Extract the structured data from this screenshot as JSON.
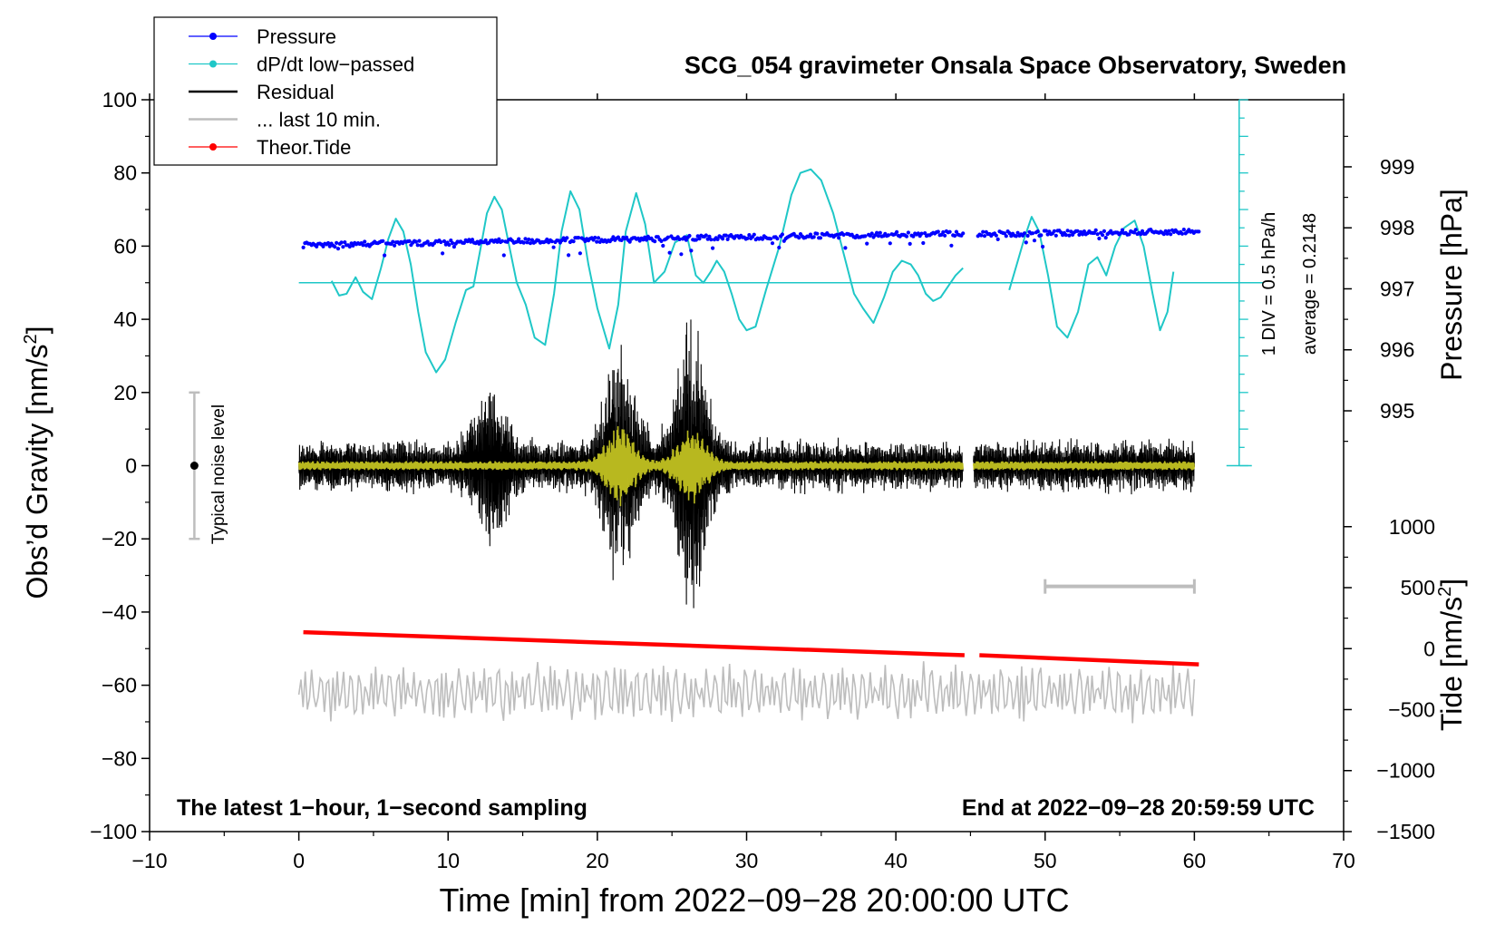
{
  "chart_data": {
    "type": "line",
    "title": "SCG_054 gravimeter Onsala Space Observatory, Sweden",
    "xlabel": "Time [min] from 2022−09−28 20:00:00 UTC",
    "ylabel_left": "Obs’d Gravity [nm/s",
    "ylabel_left_sup": "2",
    "ylabel_left_close": "]",
    "ylabel_pressure": "Pressure [hPa]",
    "ylabel_tide": "Tide [nm/s",
    "ylabel_tide_sup": "2",
    "ylabel_tide_close": "]",
    "xlim": [
      -10,
      70
    ],
    "ylim": [
      -100,
      100
    ],
    "x_ticks": [
      "−10",
      "0",
      "10",
      "20",
      "30",
      "40",
      "50",
      "60",
      "70"
    ],
    "y_ticks": [
      "−100",
      "−80",
      "−60",
      "−40",
      "−20",
      "0",
      "20",
      "40",
      "60",
      "80",
      "100"
    ],
    "pressure_axis": {
      "ticks": [
        {
          "value": 999,
          "label": "999"
        },
        {
          "value": 998,
          "label": "998"
        },
        {
          "value": 997,
          "label": "997"
        },
        {
          "value": 996,
          "label": "996"
        },
        {
          "value": 995,
          "label": "995"
        }
      ],
      "mapping": {
        "value_at_60": 997.7,
        "per_hpa": 16.67
      }
    },
    "tide_axis": {
      "ticks": [
        {
          "value": 1000,
          "label": "1000"
        },
        {
          "value": 500,
          "label": "500"
        },
        {
          "value": 0,
          "label": "0"
        },
        {
          "value": -500,
          "label": "−500"
        },
        {
          "value": -1000,
          "label": "−1000"
        },
        {
          "value": -1500,
          "label": "−1500"
        }
      ],
      "mapping": {
        "gravity_at_zero": -50,
        "per_1000": 33.333
      }
    },
    "legend": {
      "position": "top-left",
      "entries": [
        {
          "label": "Pressure",
          "color": "#0000ff",
          "marker": true
        },
        {
          "label": "dP/dt low−passed",
          "color": "#1fc7c7",
          "marker": true
        },
        {
          "label": "Residual",
          "color": "#000000",
          "marker": false
        },
        {
          "label": "... last 10 min.",
          "color": "#bdbdbd",
          "marker": false
        },
        {
          "label": "Theor.Tide",
          "color": "#ff0000",
          "marker": true
        }
      ]
    },
    "annotations": {
      "noise": "Typical noise level",
      "noise_bar": {
        "x": -7,
        "y_low": -20,
        "y_high": 20
      },
      "div": "1 DIV = 0.5 hPa/h",
      "average": "average = 0.2148",
      "bottom_left": "The latest 1−hour, 1−second sampling",
      "bottom_right": "End at 2022−09−28 20:59:59 UTC",
      "last10_bar": {
        "x_start": 50,
        "x_end": 60,
        "y": -33
      }
    },
    "dpdt_axis": {
      "x": 63,
      "y_bottom": 0,
      "y_top": 100,
      "baseline": 50,
      "tick_step": 5
    },
    "series": [
      {
        "name": "Pressure",
        "color": "#0000ff",
        "segments": [
          {
            "x_start": 0.3,
            "x_end": 44.5,
            "y_start": 60.3,
            "y_end": 63.5
          },
          {
            "x_start": 45.5,
            "x_end": 60.3,
            "y_start": 63.3,
            "y_end": 64.0
          }
        ]
      },
      {
        "name": "dP/dt low-passed",
        "color": "#1fc7c7",
        "points": [
          [
            2.2,
            50.5
          ],
          [
            2.7,
            46.5
          ],
          [
            3.2,
            47
          ],
          [
            3.8,
            51.5
          ],
          [
            4.3,
            47.5
          ],
          [
            4.9,
            45.5
          ],
          [
            5.5,
            54
          ],
          [
            6.0,
            62
          ],
          [
            6.5,
            67.5
          ],
          [
            7.0,
            64
          ],
          [
            7.5,
            55
          ],
          [
            8.0,
            42
          ],
          [
            8.5,
            31
          ],
          [
            9.2,
            25.5
          ],
          [
            9.8,
            29
          ],
          [
            10.5,
            39
          ],
          [
            11.2,
            48
          ],
          [
            11.7,
            49
          ],
          [
            12.2,
            60
          ],
          [
            12.6,
            69
          ],
          [
            13.1,
            73.5
          ],
          [
            13.6,
            70
          ],
          [
            14.1,
            60
          ],
          [
            14.6,
            50
          ],
          [
            15.2,
            44
          ],
          [
            15.8,
            35
          ],
          [
            16.5,
            33
          ],
          [
            17.1,
            47
          ],
          [
            17.6,
            64
          ],
          [
            18.2,
            75
          ],
          [
            18.8,
            70
          ],
          [
            19.4,
            55
          ],
          [
            20.0,
            43
          ],
          [
            20.8,
            32
          ],
          [
            21.4,
            44
          ],
          [
            21.9,
            64
          ],
          [
            22.6,
            74.5
          ],
          [
            23.2,
            66
          ],
          [
            23.8,
            50
          ],
          [
            24.5,
            53
          ],
          [
            25.2,
            61
          ],
          [
            26.0,
            63
          ],
          [
            26.6,
            52
          ],
          [
            27.1,
            50
          ],
          [
            27.6,
            53
          ],
          [
            28.0,
            56
          ],
          [
            28.5,
            53
          ],
          [
            29.0,
            47
          ],
          [
            29.5,
            40
          ],
          [
            30.0,
            37
          ],
          [
            30.6,
            38
          ],
          [
            31.3,
            48
          ],
          [
            32.2,
            60
          ],
          [
            33.0,
            74
          ],
          [
            33.6,
            80
          ],
          [
            34.3,
            81
          ],
          [
            35.0,
            78
          ],
          [
            35.8,
            69
          ],
          [
            36.5,
            58
          ],
          [
            37.2,
            47
          ],
          [
            37.8,
            43
          ],
          [
            38.5,
            39
          ],
          [
            39.2,
            46
          ],
          [
            39.8,
            53
          ],
          [
            40.4,
            56
          ],
          [
            41.0,
            55
          ],
          [
            41.5,
            52
          ],
          [
            42.0,
            47
          ],
          [
            42.5,
            45
          ],
          [
            43.0,
            46
          ],
          [
            43.5,
            49
          ],
          [
            44.0,
            52
          ],
          [
            44.5,
            54
          ],
          null,
          [
            47.6,
            48
          ],
          [
            48.1,
            55
          ],
          [
            48.6,
            62
          ],
          [
            49.1,
            68
          ],
          [
            49.6,
            64
          ],
          [
            50.2,
            52
          ],
          [
            50.8,
            38
          ],
          [
            51.5,
            35
          ],
          [
            52.2,
            42
          ],
          [
            52.9,
            55
          ],
          [
            53.5,
            57
          ],
          [
            54.1,
            52
          ],
          [
            54.7,
            60
          ],
          [
            55.3,
            65
          ],
          [
            56.0,
            67
          ],
          [
            56.6,
            60
          ],
          [
            57.2,
            47
          ],
          [
            57.7,
            37
          ],
          [
            58.2,
            42
          ],
          [
            58.6,
            53
          ]
        ]
      },
      {
        "name": "Residual",
        "color": "#000000",
        "segments": [
          {
            "x_start": 0,
            "x_end": 44.5
          },
          {
            "x_start": 45.2,
            "x_end": 60
          }
        ],
        "envelope_peaks": [
          {
            "x": 21.5,
            "amp": 26
          },
          {
            "x": 26.3,
            "amp": 34
          },
          {
            "x": 12.8,
            "amp": 17
          }
        ]
      },
      {
        "name": "... last 10 min.",
        "color": "#bdbdbd",
        "x_range": [
          0,
          60
        ],
        "center": -62
      },
      {
        "name": "Theor.Tide",
        "color": "#ff0000",
        "segments": [
          {
            "x_start": 0.3,
            "x_end": 44.6,
            "y_start": -45.5,
            "y_end": -51.8
          },
          {
            "x_start": 45.6,
            "x_end": 60.3,
            "y_start": -51.8,
            "y_end": -54.3
          }
        ]
      }
    ]
  }
}
